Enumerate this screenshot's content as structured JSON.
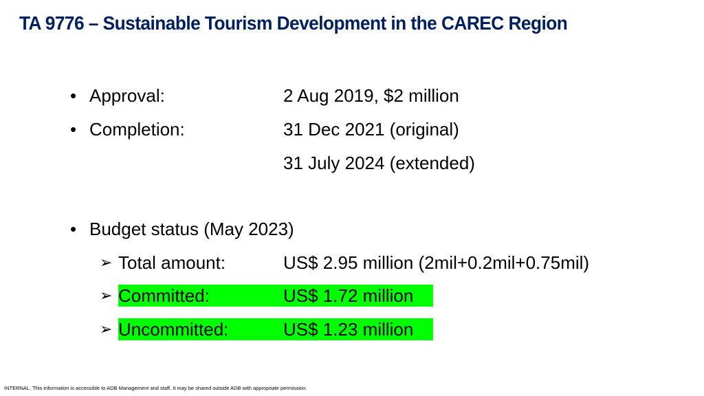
{
  "slide": {
    "title": "TA 9776 – Sustainable Tourism Development in the CAREC Region",
    "title_color": "#002060",
    "highlight_color": "#00ff00"
  },
  "details": {
    "bullet_glyph": "•",
    "approval_label": "Approval:",
    "approval_value": "2 Aug 2019, $2 million",
    "completion_label": "Completion:",
    "completion_original": "31 Dec 2021 (original)",
    "completion_extended": "31 July 2024 (extended)",
    "budget_heading": "Budget status (May 2023)"
  },
  "budget": {
    "arrow_glyph": "➢",
    "total_label": "Total amount:",
    "total_value": "US$ 2.95 million  (2mil+0.2mil+0.75mil)",
    "committed_label": "Committed:",
    "committed_value": "US$ 1.72 million",
    "uncommitted_label": "Uncommitted:",
    "uncommitted_value": "US$ 1.23 million"
  },
  "footer": {
    "text": "INTERNAL. This information is accessible to ADB Management and staff. It may be shared outside ADB with appropriate permission."
  }
}
